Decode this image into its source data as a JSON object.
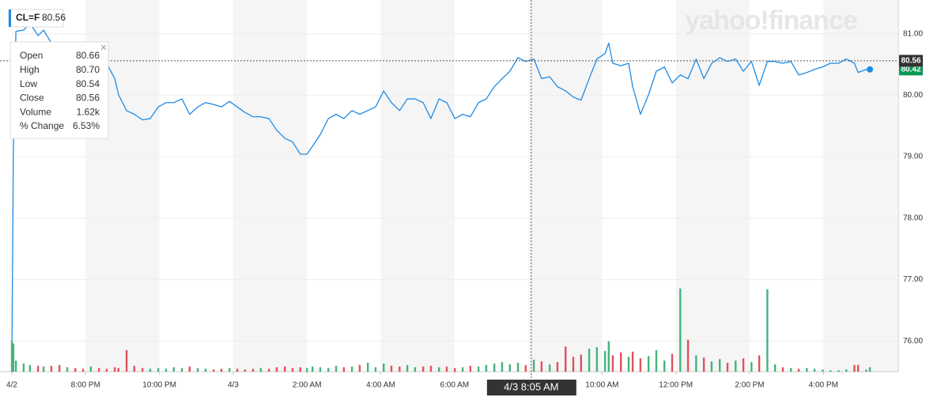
{
  "chart_data": {
    "type": "line",
    "watermark": "yahoo!finance",
    "x": [
      0,
      0.04,
      0.11,
      0.32,
      0.49,
      0.71,
      0.86,
      1.07,
      1.29,
      1.5,
      1.72,
      1.93,
      2.14,
      2.36,
      2.57,
      2.79,
      2.89,
      3.11,
      3.32,
      3.54,
      3.75,
      3.97,
      4.18,
      4.39,
      4.61,
      4.82,
      5.04,
      5.25,
      5.47,
      5.68,
      5.9,
      6.11,
      6.32,
      6.54,
      6.75,
      6.97,
      7.18,
      7.4,
      7.61,
      7.82,
      8.0,
      8.15,
      8.36,
      8.58,
      8.79,
      9.0,
      9.22,
      9.43,
      9.65,
      9.86,
      10.08,
      10.29,
      10.51,
      10.72,
      10.93,
      11.15,
      11.36,
      11.58,
      11.79,
      12.01,
      12.22,
      12.43,
      12.65,
      12.86,
      13.08,
      13.29,
      13.5,
      13.72,
      13.93,
      14.15,
      14.36,
      14.58,
      14.79,
      15.01,
      15.22,
      15.43,
      15.65,
      15.86,
      16.08,
      16.18,
      16.29,
      16.51,
      16.72,
      16.83,
      17.04,
      17.26,
      17.47,
      17.69,
      17.9,
      18.12,
      18.33,
      18.55,
      18.76,
      18.97,
      19.19,
      19.4,
      19.62,
      19.83,
      20.05,
      20.26,
      20.48,
      20.69,
      20.9,
      21.12,
      21.33,
      21.55,
      21.76,
      21.98,
      22.19,
      22.41,
      22.62,
      22.84,
      22.94,
      23.16,
      23.26
    ],
    "series": [
      {
        "name": "CL=F",
        "color": "#1e8ce6",
        "values": [
          75.69,
          79.11,
          81.04,
          81.06,
          81.17,
          80.97,
          81.06,
          80.85,
          80.65,
          80.85,
          80.72,
          80.65,
          80.78,
          80.76,
          80.52,
          80.27,
          80.01,
          79.75,
          79.69,
          79.6,
          79.62,
          79.81,
          79.88,
          79.88,
          79.94,
          79.69,
          79.81,
          79.88,
          79.85,
          79.81,
          79.9,
          79.81,
          79.72,
          79.65,
          79.65,
          79.62,
          79.43,
          79.3,
          79.24,
          79.04,
          79.04,
          79.17,
          79.36,
          79.62,
          79.69,
          79.62,
          79.75,
          79.69,
          79.75,
          79.81,
          80.07,
          79.88,
          79.75,
          79.94,
          79.94,
          79.88,
          79.62,
          79.94,
          79.88,
          79.62,
          79.69,
          79.65,
          79.88,
          79.94,
          80.14,
          80.27,
          80.39,
          80.61,
          80.55,
          80.59,
          80.27,
          80.3,
          80.14,
          80.07,
          79.97,
          79.92,
          80.27,
          80.59,
          80.68,
          80.85,
          80.52,
          80.48,
          80.52,
          80.14,
          79.69,
          80.01,
          80.39,
          80.46,
          80.2,
          80.33,
          80.27,
          80.59,
          80.27,
          80.52,
          80.61,
          80.55,
          80.59,
          80.39,
          80.55,
          80.16,
          80.55,
          80.55,
          80.52,
          80.55,
          80.33,
          80.37,
          80.42,
          80.46,
          80.52,
          80.52,
          80.59,
          80.52,
          80.37,
          80.42,
          80.42
        ],
        "last_label_color": "#0b9a55"
      },
      {
        "type": "bar",
        "axis": "y2",
        "color_up": "#45b37c",
        "color_down": "#e0525b",
        "values": [
          4200,
          3800,
          1500,
          1100,
          900,
          800,
          700,
          800,
          900,
          600,
          500,
          400,
          700,
          500,
          400,
          600,
          500,
          2900,
          800,
          500,
          400,
          500,
          400,
          600,
          500,
          700,
          500,
          400,
          300,
          400,
          500,
          400,
          300,
          400,
          500,
          400,
          600,
          700,
          500,
          600,
          500,
          700,
          600,
          500,
          800,
          600,
          700,
          900,
          1200,
          600,
          1100,
          800,
          700,
          900,
          600,
          700,
          800,
          600,
          700,
          500,
          600,
          800,
          700,
          900,
          1100,
          1300,
          1000,
          1200,
          900,
          1620,
          1400,
          1000,
          1300,
          3400,
          2000,
          2300,
          3100,
          3300,
          2800,
          4100,
          2200,
          2600,
          2000,
          2700,
          1800,
          2100,
          2900,
          1500,
          2400,
          11200,
          4300,
          2200,
          1900,
          1400,
          1700,
          1200,
          1500,
          1800,
          1300,
          2200,
          11100,
          1000,
          600,
          500,
          400,
          500,
          400,
          300,
          200,
          200,
          300,
          900,
          900,
          300,
          600
        ]
      }
    ],
    "xlim": [
      0,
      24.03
    ],
    "xticks": [
      {
        "value": 0,
        "label": "4/2"
      },
      {
        "value": 2,
        "label": "8:00 PM"
      },
      {
        "value": 4,
        "label": "10:00 PM"
      },
      {
        "value": 6,
        "label": "4/3"
      },
      {
        "value": 8,
        "label": "2:00 AM"
      },
      {
        "value": 10,
        "label": "4:00 AM"
      },
      {
        "value": 12,
        "label": "6:00 AM"
      },
      {
        "value": 16,
        "label": "10:00 AM"
      },
      {
        "value": 18,
        "label": "12:00 PM"
      },
      {
        "value": 20,
        "label": "2:00 PM"
      },
      {
        "value": 22,
        "label": "4:00 PM"
      }
    ],
    "ylim": [
      75.5,
      81.55
    ],
    "yticks": [
      {
        "value": 76,
        "label": "76.00"
      },
      {
        "value": 77,
        "label": "77.00"
      },
      {
        "value": 78,
        "label": "78.00"
      },
      {
        "value": 79,
        "label": "79.00"
      },
      {
        "value": 80,
        "label": "80.00"
      },
      {
        "value": 81,
        "label": "81.00"
      }
    ],
    "y2lim": [
      0,
      50000
    ],
    "grid": true,
    "shaded_bands": true,
    "crosshair": {
      "x": 14.08,
      "x_label": "4/3 8:05 AM",
      "y": 80.56
    },
    "tooltip": [
      {
        "label": "Open",
        "value": "80.66"
      },
      {
        "label": "High",
        "value": "80.70"
      },
      {
        "label": "Low",
        "value": "80.54"
      },
      {
        "label": "Close",
        "value": "80.56"
      },
      {
        "label": "Volume",
        "value": "1.62k"
      },
      {
        "label": "% Change",
        "value": "6.53%"
      }
    ]
  }
}
